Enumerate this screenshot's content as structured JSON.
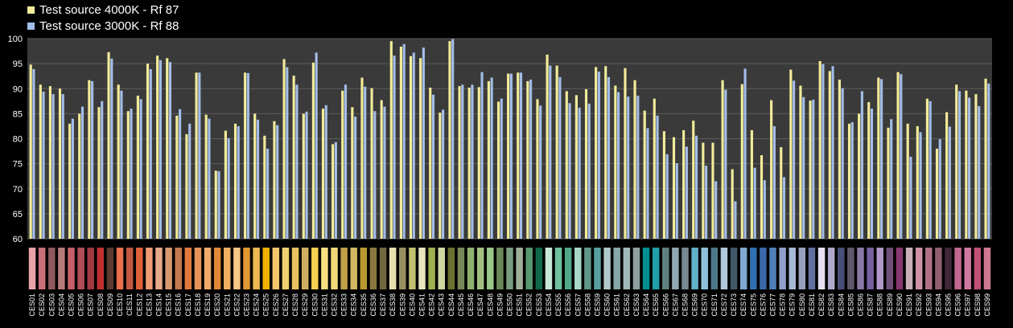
{
  "colors": {
    "background": "#000000",
    "plot_background": "#3a3a3a",
    "gridline": "#5c5c5c",
    "series_4000k": "#f2ec9a",
    "series_3000k": "#a3bde8",
    "text": "#ffffff"
  },
  "chart_data": {
    "type": "bar",
    "title": "",
    "xlabel": "",
    "ylabel": "",
    "ylim": [
      60,
      100
    ],
    "yticks": [
      60,
      65,
      70,
      75,
      80,
      85,
      90,
      95,
      100
    ],
    "grid": true,
    "legend_position": "top-left",
    "categories": [
      "CES01",
      "CES02",
      "CES03",
      "CES04",
      "CES05",
      "CES06",
      "CES07",
      "CES08",
      "CES09",
      "CES10",
      "CES11",
      "CES12",
      "CES13",
      "CES14",
      "CES15",
      "CES16",
      "CES17",
      "CES18",
      "CES19",
      "CES20",
      "CES21",
      "CES22",
      "CES23",
      "CES24",
      "CES25",
      "CES26",
      "CES27",
      "CES28",
      "CES29",
      "CES30",
      "CES31",
      "CES32",
      "CES33",
      "CES34",
      "CES35",
      "CES36",
      "CES37",
      "CES38",
      "CES39",
      "CES40",
      "CES41",
      "CES42",
      "CES43",
      "CES44",
      "CES45",
      "CES46",
      "CES47",
      "CES48",
      "CES49",
      "CES50",
      "CES51",
      "CES52",
      "CES53",
      "CES54",
      "CES55",
      "CES56",
      "CES57",
      "CES58",
      "CES59",
      "CES60",
      "CES61",
      "CES62",
      "CES63",
      "CES64",
      "CES65",
      "CES66",
      "CES67",
      "CES68",
      "CES69",
      "CES70",
      "CES71",
      "CES72",
      "CES73",
      "CES74",
      "CES75",
      "CES76",
      "CES77",
      "CES78",
      "CES79",
      "CES80",
      "CES81",
      "CES82",
      "CES83",
      "CES84",
      "CES85",
      "CES86",
      "CES87",
      "CES88",
      "CES89",
      "CES90",
      "CES91",
      "CES92",
      "CES93",
      "CES94",
      "CES95",
      "CES96",
      "CES97",
      "CES98",
      "CES99"
    ],
    "series": [
      {
        "name": "Test source 4000K - Rf 87",
        "values": [
          94.8,
          90.8,
          90.5,
          90.0,
          83.0,
          85.0,
          91.7,
          86.3,
          97.3,
          90.8,
          85.5,
          88.6,
          95.0,
          96.6,
          96.1,
          84.6,
          80.9,
          93.2,
          84.8,
          73.6,
          81.6,
          83.0,
          93.2,
          85.0,
          80.6,
          83.5,
          95.9,
          92.6,
          85.0,
          95.2,
          86.0,
          78.9,
          89.6,
          86.3,
          92.2,
          90.1,
          87.7,
          99.5,
          98.4,
          96.5,
          96.1,
          90.2,
          85.2,
          99.5,
          90.5,
          90.2,
          90.3,
          91.5,
          87.4,
          93.0,
          93.2,
          91.5,
          87.9,
          96.8,
          94.6,
          89.5,
          88.7,
          89.9,
          94.3,
          94.5,
          90.6,
          94.1,
          91.7,
          85.6,
          88.0,
          81.5,
          80.3,
          81.7,
          83.6,
          79.2,
          79.2,
          91.7,
          73.9,
          90.9,
          81.7,
          76.7,
          87.7,
          78.3,
          93.8,
          90.6,
          87.6,
          95.5,
          93.5,
          91.8,
          83.0,
          85.0,
          87.3,
          92.2,
          82.2,
          93.3,
          83.0,
          82.5,
          88.0,
          78.0,
          85.3,
          90.8,
          89.6,
          88.9,
          92.0
        ]
      },
      {
        "name": "Test source 3000K - Rf 88",
        "values": [
          93.9,
          89.4,
          88.9,
          88.9,
          84.0,
          86.4,
          91.5,
          87.5,
          96.0,
          89.6,
          86.0,
          87.9,
          93.9,
          95.7,
          95.3,
          85.9,
          83.0,
          93.2,
          84.0,
          73.5,
          80.1,
          82.5,
          93.1,
          83.8,
          78.0,
          82.7,
          94.3,
          90.8,
          85.4,
          97.2,
          86.7,
          79.3,
          90.8,
          84.4,
          90.4,
          85.5,
          86.4,
          96.6,
          98.9,
          97.2,
          98.2,
          88.8,
          85.8,
          99.9,
          90.8,
          90.8,
          93.3,
          92.2,
          88.0,
          93.0,
          93.2,
          91.8,
          86.6,
          94.6,
          92.3,
          87.1,
          86.2,
          87.0,
          93.4,
          92.3,
          89.3,
          88.4,
          88.6,
          82.1,
          84.6,
          76.9,
          75.1,
          78.4,
          80.6,
          74.6,
          71.5,
          89.8,
          67.5,
          94.0,
          74.2,
          71.7,
          82.5,
          72.3,
          91.6,
          88.3,
          87.8,
          94.9,
          94.5,
          90.1,
          83.3,
          89.5,
          86.0,
          91.9,
          83.9,
          92.9,
          76.4,
          81.3,
          87.5,
          79.9,
          82.4,
          89.5,
          88.2,
          86.5,
          91.0
        ]
      }
    ],
    "patch_colors": [
      "#e8a2a8",
      "#c9707a",
      "#8e5a5e",
      "#b87a7c",
      "#c66068",
      "#b04e58",
      "#a03a40",
      "#c03030",
      "#5c3a30",
      "#e8704a",
      "#c05840",
      "#e0603a",
      "#f09a76",
      "#e8a888",
      "#d89870",
      "#c4784e",
      "#e07a3c",
      "#e89458",
      "#f0aa6c",
      "#e08838",
      "#f0b060",
      "#f8c888",
      "#e09830",
      "#f0b850",
      "#f0b000",
      "#f4c66c",
      "#f0d070",
      "#e8c060",
      "#d0b060",
      "#f8d050",
      "#f8e080",
      "#f0d878",
      "#c0a048",
      "#d0b860",
      "#b89830",
      "#8a7840",
      "#706840",
      "#e8e0b0",
      "#989060",
      "#c0c070",
      "#e8e4c0",
      "#a0b050",
      "#d0d8a0",
      "#6a7030",
      "#788858",
      "#90b070",
      "#a0c080",
      "#98c888",
      "#6c8858",
      "#7a9c80",
      "#a0b098",
      "#589870",
      "#106848",
      "#c8e8d8",
      "#70c0a0",
      "#50a888",
      "#a8d8c8",
      "#609888",
      "#58a0a0",
      "#b0c8c8",
      "#88a8a8",
      "#a0b8b8",
      "#90a0a0",
      "#009090",
      "#20a0a8",
      "#608080",
      "#90a8b0",
      "#788890",
      "#60b0c8",
      "#90c0d8",
      "#4a7888",
      "#b0c8d8",
      "#405868",
      "#80a8d0",
      "#3070b0",
      "#3a68a8",
      "#5080b8",
      "#90a0c8",
      "#a8b8d8",
      "#98a0c0",
      "#6070a0",
      "#e8e0f0",
      "#b0a8c8",
      "#485078",
      "#605868",
      "#8a78a8",
      "#7860a0",
      "#b098c8",
      "#705078",
      "#883870",
      "#c8b0b8",
      "#d090a8",
      "#b07088",
      "#906070",
      "#402838",
      "#c06890",
      "#d078a0",
      "#c05078",
      "#d07890"
    ]
  }
}
